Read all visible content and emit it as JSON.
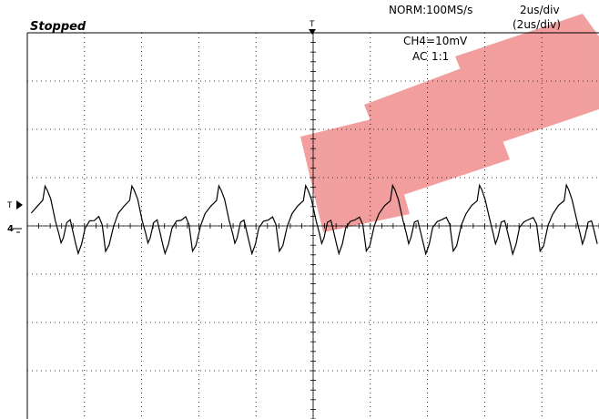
{
  "header": {
    "status": "Stopped",
    "sample_rate": "NORM:100MS/s",
    "time_div": "2us/div",
    "time_div_secondary": "(2us/div)",
    "channel": "CH4=10mV",
    "coupling": "AC",
    "probe_ratio": "1:1"
  },
  "markers": {
    "trigger_top": "T",
    "trigger_level": "T",
    "channel_ground": "4"
  },
  "watermark": {
    "text": "EEPW",
    "color": "#e85050"
  },
  "colors": {
    "grid": "#000000",
    "trace": "#000000",
    "background": "#ffffff"
  },
  "chart_data": {
    "type": "line",
    "title": "",
    "xlabel": "",
    "ylabel": "",
    "x_divisions": 10,
    "y_divisions": 8,
    "xlim": [
      0,
      10
    ],
    "ylim": [
      -4,
      4
    ],
    "grid": true,
    "series": [
      {
        "period_div": 1.52,
        "cycles": 6.6,
        "waveform_div": [
          [
            0.0,
            0.0
          ],
          [
            0.08,
            0.25
          ],
          [
            0.18,
            0.4
          ],
          [
            0.28,
            0.55
          ],
          [
            0.32,
            0.85
          ],
          [
            0.36,
            0.72
          ],
          [
            0.42,
            0.55
          ],
          [
            0.5,
            0.12
          ],
          [
            0.56,
            -0.18
          ],
          [
            0.6,
            -0.35
          ],
          [
            0.64,
            -0.22
          ],
          [
            0.7,
            0.05
          ],
          [
            0.76,
            0.12
          ],
          [
            0.8,
            -0.05
          ],
          [
            0.86,
            -0.4
          ],
          [
            0.9,
            -0.6
          ],
          [
            0.96,
            -0.35
          ],
          [
            1.02,
            -0.05
          ],
          [
            1.1,
            0.1
          ],
          [
            1.18,
            0.12
          ],
          [
            1.26,
            0.18
          ],
          [
            1.32,
            0.05
          ],
          [
            1.38,
            -0.55
          ],
          [
            1.44,
            -0.4
          ],
          [
            1.52,
            0.0
          ]
        ]
      }
    ]
  }
}
